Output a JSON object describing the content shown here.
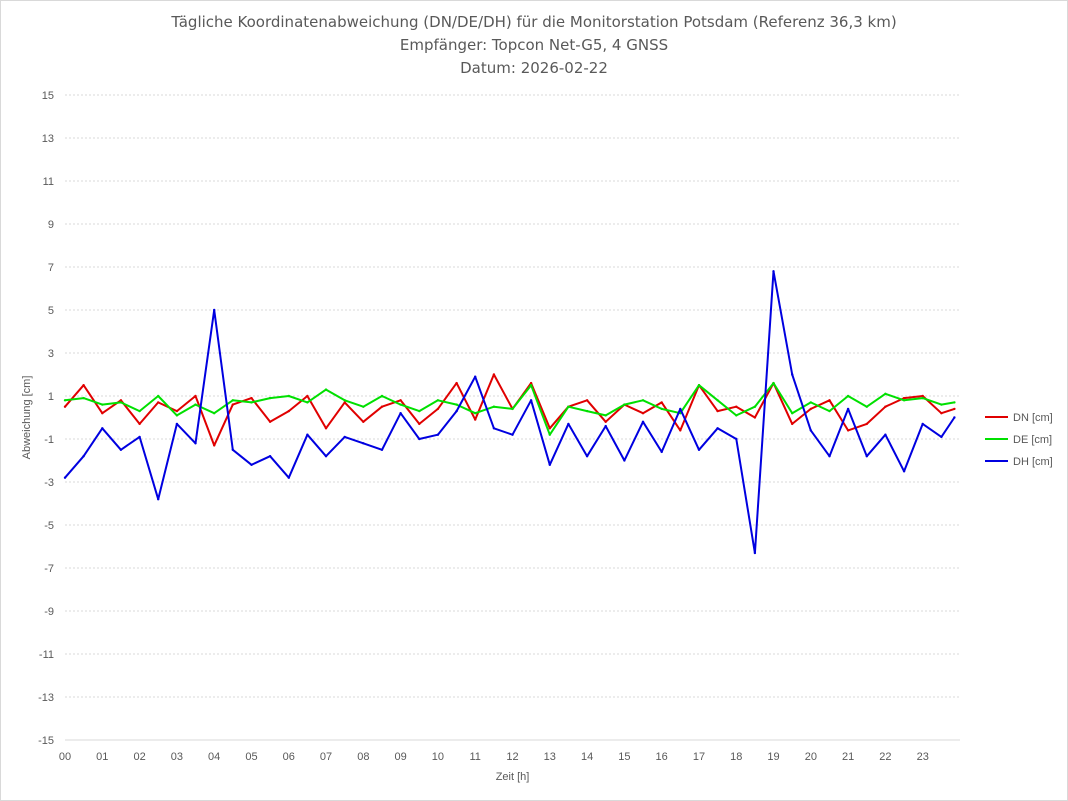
{
  "chart_data": {
    "type": "line",
    "title": "Tägliche Koordinatenabweichung (DN/DE/DH) für die Monitorstation Potsdam (Referenz 36,3 km)",
    "subtitle": "Empfänger: Topcon Net-G5, 4 GNSS",
    "date_line": "Datum: 2026-02-22",
    "xlabel": "Zeit [h]",
    "ylabel": "Abweichung [cm]",
    "xlim": [
      0,
      24
    ],
    "ylim": [
      -15,
      15
    ],
    "x_ticks": [
      "00",
      "01",
      "02",
      "03",
      "04",
      "05",
      "06",
      "07",
      "08",
      "09",
      "10",
      "11",
      "12",
      "13",
      "14",
      "15",
      "16",
      "17",
      "18",
      "19",
      "20",
      "21",
      "22",
      "23"
    ],
    "y_ticks": [
      15,
      13,
      11,
      9,
      7,
      5,
      3,
      1,
      -1,
      -3,
      -5,
      -7,
      -9,
      -11,
      -13,
      -15
    ],
    "grid": true,
    "legend_position": "right",
    "x": [
      0,
      0.5,
      1,
      1.5,
      2,
      2.5,
      3,
      3.5,
      4,
      4.5,
      5,
      5.5,
      6,
      6.5,
      7,
      7.5,
      8,
      8.5,
      9,
      9.5,
      10,
      10.5,
      11,
      11.5,
      12,
      12.5,
      13,
      13.5,
      14,
      14.5,
      15,
      15.5,
      16,
      16.5,
      17,
      17.5,
      18,
      18.5,
      19,
      19.5,
      20,
      20.5,
      21,
      21.5,
      22,
      22.5,
      23,
      23.5,
      23.85
    ],
    "series": [
      {
        "name": "DN [cm]",
        "color": "#e00000",
        "values": [
          0.5,
          1.5,
          0.2,
          0.8,
          -0.3,
          0.7,
          0.3,
          1.0,
          -1.3,
          0.6,
          0.9,
          -0.2,
          0.3,
          1.0,
          -0.5,
          0.7,
          -0.2,
          0.5,
          0.8,
          -0.3,
          0.4,
          1.6,
          -0.1,
          2.0,
          0.4,
          1.6,
          -0.5,
          0.5,
          0.8,
          -0.2,
          0.6,
          0.2,
          0.7,
          -0.6,
          1.5,
          0.3,
          0.5,
          0.0,
          1.6,
          -0.3,
          0.4,
          0.8,
          -0.6,
          -0.3,
          0.5,
          0.9,
          1.0,
          0.2,
          0.4
        ]
      },
      {
        "name": "DE [cm]",
        "color": "#00e000",
        "values": [
          0.8,
          0.9,
          0.6,
          0.7,
          0.3,
          1.0,
          0.1,
          0.6,
          0.2,
          0.8,
          0.7,
          0.9,
          1.0,
          0.7,
          1.3,
          0.8,
          0.5,
          1.0,
          0.6,
          0.3,
          0.8,
          0.6,
          0.2,
          0.5,
          0.4,
          1.5,
          -0.8,
          0.5,
          0.3,
          0.1,
          0.6,
          0.8,
          0.4,
          0.2,
          1.5,
          0.8,
          0.1,
          0.5,
          1.6,
          0.2,
          0.7,
          0.3,
          1.0,
          0.5,
          1.1,
          0.8,
          0.9,
          0.6,
          0.7
        ]
      },
      {
        "name": "DH [cm]",
        "color": "#0000e0",
        "values": [
          -2.8,
          -1.8,
          -0.5,
          -1.5,
          -0.9,
          -3.8,
          -0.3,
          -1.2,
          5.0,
          -1.5,
          -2.2,
          -1.8,
          -2.8,
          -0.8,
          -1.8,
          -0.9,
          -1.2,
          -1.5,
          0.2,
          -1.0,
          -0.8,
          0.3,
          1.9,
          -0.5,
          -0.8,
          0.8,
          -2.2,
          -0.3,
          -1.8,
          -0.4,
          -2.0,
          -0.2,
          -1.6,
          0.4,
          -1.5,
          -0.5,
          -1.0,
          -6.3,
          6.8,
          2.0,
          -0.6,
          -1.8,
          0.4,
          -1.8,
          -0.8,
          -2.5,
          -0.3,
          -0.9,
          0.0
        ]
      }
    ]
  }
}
